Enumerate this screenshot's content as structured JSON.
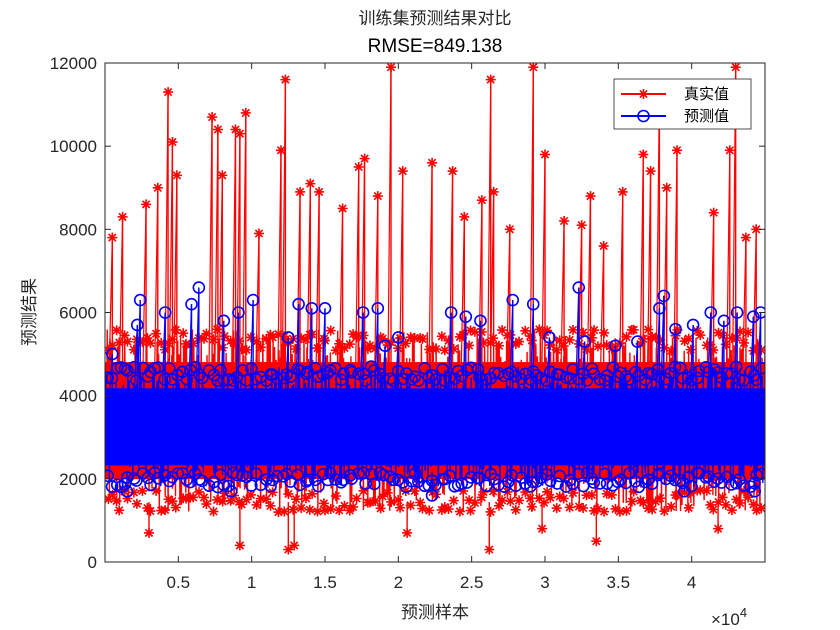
{
  "chart_data": {
    "type": "line",
    "title": "训练集预测结果对比",
    "subtitle": "RMSE=849.138",
    "xlabel": "预测样本",
    "ylabel": "预测结果",
    "xlim": [
      1,
      45000
    ],
    "ylim": [
      0,
      12000
    ],
    "x_ticks": [
      5000,
      10000,
      15000,
      20000,
      25000,
      30000,
      35000,
      40000
    ],
    "x_tick_labels": [
      "0.5",
      "1",
      "1.5",
      "2",
      "2.5",
      "3",
      "3.5",
      "4"
    ],
    "x_exponent_label": "×10",
    "x_exponent_power": "4",
    "y_ticks": [
      0,
      2000,
      4000,
      6000,
      8000,
      10000,
      12000
    ],
    "y_tick_labels": [
      "0",
      "2000",
      "4000",
      "6000",
      "8000",
      "10000",
      "12000"
    ],
    "grid": false,
    "legend_position": "top-right",
    "series": [
      {
        "name": "真实值",
        "color": "#ff0000",
        "marker": "asterisk",
        "band_low": 1200,
        "band_high": 5600,
        "peaks": [
          {
            "x": 500,
            "y": 7800
          },
          {
            "x": 1200,
            "y": 8300
          },
          {
            "x": 2800,
            "y": 8600
          },
          {
            "x": 3600,
            "y": 9000
          },
          {
            "x": 4300,
            "y": 11300
          },
          {
            "x": 4600,
            "y": 10100
          },
          {
            "x": 4900,
            "y": 9300
          },
          {
            "x": 7300,
            "y": 10700
          },
          {
            "x": 7700,
            "y": 10400
          },
          {
            "x": 8000,
            "y": 9300
          },
          {
            "x": 8900,
            "y": 10400
          },
          {
            "x": 9200,
            "y": 10300
          },
          {
            "x": 9600,
            "y": 10800
          },
          {
            "x": 10500,
            "y": 7900
          },
          {
            "x": 12000,
            "y": 9900
          },
          {
            "x": 12300,
            "y": 11600
          },
          {
            "x": 13300,
            "y": 8900
          },
          {
            "x": 14000,
            "y": 9100
          },
          {
            "x": 14600,
            "y": 8900
          },
          {
            "x": 16200,
            "y": 8500
          },
          {
            "x": 17300,
            "y": 9500
          },
          {
            "x": 17700,
            "y": 9700
          },
          {
            "x": 18600,
            "y": 8800
          },
          {
            "x": 19500,
            "y": 11900
          },
          {
            "x": 20300,
            "y": 9400
          },
          {
            "x": 22300,
            "y": 9600
          },
          {
            "x": 23700,
            "y": 9400
          },
          {
            "x": 24500,
            "y": 8300
          },
          {
            "x": 25700,
            "y": 8700
          },
          {
            "x": 26300,
            "y": 11600
          },
          {
            "x": 26500,
            "y": 8900
          },
          {
            "x": 27600,
            "y": 8000
          },
          {
            "x": 29200,
            "y": 11900
          },
          {
            "x": 30000,
            "y": 9800
          },
          {
            "x": 31300,
            "y": 8200
          },
          {
            "x": 32500,
            "y": 8100
          },
          {
            "x": 33100,
            "y": 8800
          },
          {
            "x": 34000,
            "y": 7600
          },
          {
            "x": 35300,
            "y": 8900
          },
          {
            "x": 36700,
            "y": 9800
          },
          {
            "x": 37200,
            "y": 9400
          },
          {
            "x": 37800,
            "y": 11300
          },
          {
            "x": 38300,
            "y": 9000
          },
          {
            "x": 39000,
            "y": 9900
          },
          {
            "x": 41500,
            "y": 8400
          },
          {
            "x": 42600,
            "y": 9900
          },
          {
            "x": 43000,
            "y": 11900
          },
          {
            "x": 43700,
            "y": 7800
          },
          {
            "x": 44400,
            "y": 8000
          }
        ],
        "dips": [
          {
            "x": 12500,
            "y": 300
          },
          {
            "x": 12900,
            "y": 400
          },
          {
            "x": 9200,
            "y": 400
          },
          {
            "x": 26200,
            "y": 300
          },
          {
            "x": 33500,
            "y": 500
          },
          {
            "x": 3000,
            "y": 700
          },
          {
            "x": 20600,
            "y": 700
          },
          {
            "x": 29800,
            "y": 800
          },
          {
            "x": 41800,
            "y": 800
          }
        ]
      },
      {
        "name": "预测值",
        "color": "#0000ff",
        "marker": "circle",
        "band_low": 1800,
        "band_high": 4700,
        "peaks": [
          {
            "x": 500,
            "y": 5000
          },
          {
            "x": 2400,
            "y": 6300
          },
          {
            "x": 2200,
            "y": 5700
          },
          {
            "x": 4100,
            "y": 6000
          },
          {
            "x": 5900,
            "y": 6200
          },
          {
            "x": 6400,
            "y": 6600
          },
          {
            "x": 8100,
            "y": 5800
          },
          {
            "x": 9100,
            "y": 6000
          },
          {
            "x": 10100,
            "y": 6300
          },
          {
            "x": 12500,
            "y": 5400
          },
          {
            "x": 13200,
            "y": 6200
          },
          {
            "x": 14100,
            "y": 6100
          },
          {
            "x": 15000,
            "y": 6100
          },
          {
            "x": 17600,
            "y": 6000
          },
          {
            "x": 18600,
            "y": 6100
          },
          {
            "x": 19100,
            "y": 5200
          },
          {
            "x": 20000,
            "y": 5400
          },
          {
            "x": 23600,
            "y": 6000
          },
          {
            "x": 24600,
            "y": 5900
          },
          {
            "x": 25600,
            "y": 5800
          },
          {
            "x": 27800,
            "y": 6300
          },
          {
            "x": 29200,
            "y": 6200
          },
          {
            "x": 30300,
            "y": 5400
          },
          {
            "x": 32300,
            "y": 6600
          },
          {
            "x": 32700,
            "y": 5300
          },
          {
            "x": 34800,
            "y": 5200
          },
          {
            "x": 36300,
            "y": 5300
          },
          {
            "x": 37800,
            "y": 6100
          },
          {
            "x": 38100,
            "y": 6400
          },
          {
            "x": 38900,
            "y": 5600
          },
          {
            "x": 40100,
            "y": 5700
          },
          {
            "x": 41300,
            "y": 6000
          },
          {
            "x": 42200,
            "y": 5800
          },
          {
            "x": 43100,
            "y": 6000
          },
          {
            "x": 44200,
            "y": 5900
          },
          {
            "x": 44700,
            "y": 6000
          }
        ],
        "dips": [
          {
            "x": 1500,
            "y": 1700
          },
          {
            "x": 8600,
            "y": 1700
          },
          {
            "x": 22300,
            "y": 1600
          },
          {
            "x": 39500,
            "y": 1700
          },
          {
            "x": 44300,
            "y": 1700
          }
        ]
      }
    ]
  }
}
